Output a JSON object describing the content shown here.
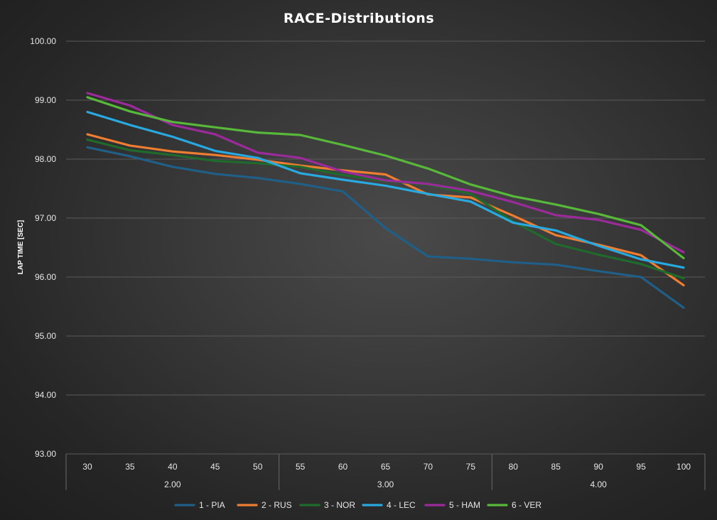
{
  "chart_data": {
    "type": "line",
    "title": "RACE-Distributions",
    "ylabel": "LAP TIME [SEC]",
    "xlabel": "",
    "ylim": [
      93,
      100
    ],
    "yticks": [
      "93.00",
      "94.00",
      "95.00",
      "96.00",
      "97.00",
      "98.00",
      "99.00",
      "100.00"
    ],
    "categories": [
      "30",
      "35",
      "40",
      "45",
      "50",
      "55",
      "60",
      "65",
      "70",
      "75",
      "80",
      "85",
      "90",
      "95",
      "100"
    ],
    "groups": [
      {
        "label": "2.00",
        "start": 0,
        "end": 5
      },
      {
        "label": "3.00",
        "start": 5,
        "end": 10
      },
      {
        "label": "4.00",
        "start": 10,
        "end": 15
      }
    ],
    "series": [
      {
        "name": "1 - PIA",
        "color": "#1f5f88",
        "values": [
          98.2,
          98.05,
          97.87,
          97.75,
          97.68,
          97.58,
          97.45,
          96.83,
          96.35,
          96.31,
          96.25,
          96.21,
          96.1,
          96.0,
          95.48
        ]
      },
      {
        "name": "2 - RUS",
        "color": "#ed7d31",
        "values": [
          98.42,
          98.23,
          98.13,
          98.07,
          97.99,
          97.89,
          97.81,
          97.74,
          97.4,
          97.35,
          97.04,
          96.71,
          96.55,
          96.37,
          95.86
        ]
      },
      {
        "name": "3 - NOR",
        "color": "#1e6b2c",
        "values": [
          98.33,
          98.15,
          98.07,
          97.97,
          97.93,
          97.87,
          97.73,
          97.63,
          97.57,
          97.41,
          96.94,
          96.56,
          96.38,
          96.22,
          95.98
        ]
      },
      {
        "name": "4 - LEC",
        "color": "#28a9e0",
        "values": [
          98.8,
          98.58,
          98.38,
          98.14,
          98.02,
          97.76,
          97.65,
          97.55,
          97.41,
          97.28,
          96.92,
          96.79,
          96.53,
          96.3,
          96.16
        ]
      },
      {
        "name": "5 - HAM",
        "color": "#9b2a9b",
        "values": [
          99.12,
          98.91,
          98.58,
          98.42,
          98.11,
          98.02,
          97.79,
          97.64,
          97.58,
          97.46,
          97.27,
          97.05,
          96.97,
          96.8,
          96.42
        ]
      },
      {
        "name": "6 - VER",
        "color": "#57b83a",
        "values": [
          99.05,
          98.81,
          98.63,
          98.54,
          98.45,
          98.41,
          98.24,
          98.06,
          97.84,
          97.57,
          97.37,
          97.23,
          97.07,
          96.88,
          96.32
        ]
      }
    ],
    "legend_position": "bottom",
    "grid": true
  }
}
